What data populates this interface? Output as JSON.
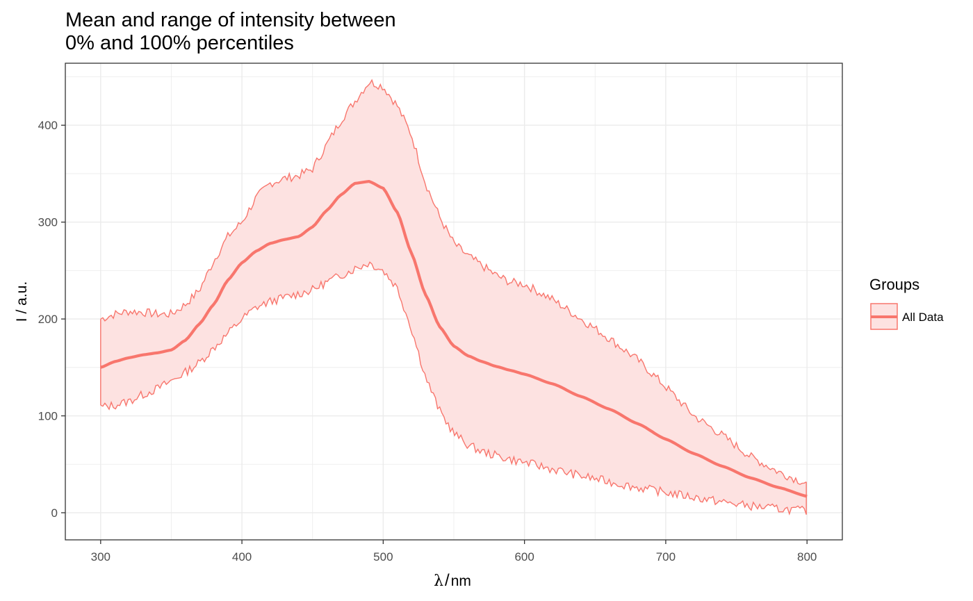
{
  "chart_data": {
    "type": "area",
    "title_lines": [
      "Mean and range of intensity between",
      "0% and 100% percentiles"
    ],
    "xlabel_symbol": "λ",
    "xlabel_unit": "nm",
    "ylabel": "I / a.u.",
    "xlim": [
      275,
      825
    ],
    "ylim": [
      -28,
      464
    ],
    "x_ticks": [
      300,
      400,
      500,
      600,
      700,
      800
    ],
    "y_ticks": [
      0,
      100,
      200,
      300,
      400
    ],
    "x_tick_labels": [
      "300",
      "400",
      "500",
      "600",
      "700",
      "800"
    ],
    "y_tick_labels": [
      "0",
      "100",
      "200",
      "300",
      "400"
    ],
    "grid": true,
    "legend": {
      "title": "Groups",
      "placement": "right",
      "entries": [
        "All Data"
      ]
    },
    "colors": {
      "line": "#F8766D",
      "fill": "#FDE2E1",
      "panel_border": "#333333",
      "grid": "#EBEBEB"
    },
    "series": [
      {
        "name": "All Data",
        "x": [
          300,
          310,
          320,
          330,
          340,
          350,
          360,
          370,
          380,
          390,
          400,
          410,
          420,
          430,
          440,
          450,
          460,
          470,
          480,
          490,
          500,
          510,
          520,
          530,
          540,
          550,
          560,
          570,
          580,
          590,
          600,
          620,
          640,
          660,
          680,
          700,
          720,
          740,
          760,
          780,
          800
        ],
        "mean": [
          150,
          156,
          160,
          163,
          165,
          168,
          178,
          195,
          215,
          240,
          258,
          270,
          278,
          282,
          285,
          295,
          312,
          328,
          340,
          342,
          335,
          310,
          268,
          225,
          192,
          172,
          162,
          156,
          151,
          147,
          143,
          133,
          120,
          107,
          92,
          76,
          61,
          48,
          36,
          26,
          17
        ],
        "min": [
          109,
          111,
          115,
          122,
          128,
          136,
          145,
          155,
          170,
          185,
          200,
          212,
          218,
          222,
          226,
          230,
          238,
          245,
          252,
          258,
          250,
          232,
          190,
          140,
          105,
          82,
          70,
          63,
          59,
          55,
          52,
          45,
          38,
          32,
          26,
          21,
          16,
          11,
          7,
          4,
          2
        ],
        "max": [
          200,
          205,
          208,
          207,
          205,
          205,
          215,
          230,
          260,
          285,
          300,
          325,
          340,
          345,
          348,
          355,
          380,
          405,
          425,
          445,
          440,
          420,
          390,
          340,
          305,
          278,
          265,
          255,
          245,
          238,
          236,
          220,
          200,
          180,
          158,
          130,
          100,
          80,
          58,
          42,
          30
        ]
      }
    ]
  }
}
